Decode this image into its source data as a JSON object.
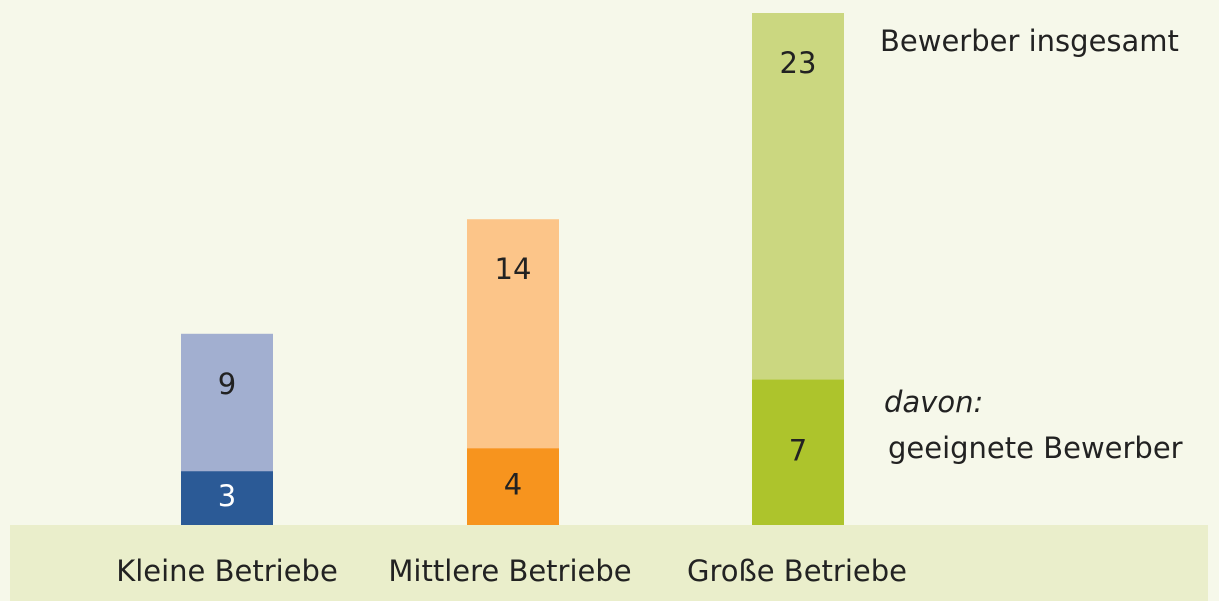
{
  "chart_data": {
    "type": "bar",
    "categories": [
      "Kleine Betriebe",
      "Mittlere Betriebe",
      "Große Betriebe"
    ],
    "annotation": "davon:",
    "series": [
      {
        "name": "Bewerber insgesamt",
        "values": [
          9,
          14,
          23
        ],
        "colors": [
          "#a2afd0",
          "#fcc589",
          "#cbd780"
        ]
      },
      {
        "name": "geeignete Bewerber",
        "values": [
          3,
          4,
          7
        ],
        "colors": [
          "#2b5a96",
          "#f7941e",
          "#adc42c"
        ],
        "label_colors": [
          "#ffffff",
          "#222222",
          "#222222"
        ]
      }
    ]
  }
}
